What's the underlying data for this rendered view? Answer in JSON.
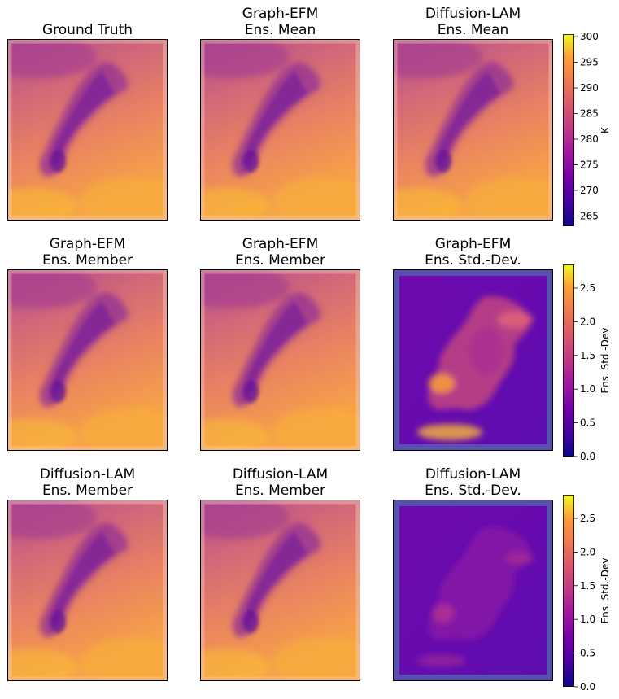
{
  "panels": [
    {
      "title": [
        "Ground Truth"
      ],
      "kind": "temp"
    },
    {
      "title": [
        "Graph-EFM",
        "Ens. Mean"
      ],
      "kind": "temp"
    },
    {
      "title": [
        "Diffusion-LAM",
        "Ens. Mean"
      ],
      "kind": "temp"
    },
    {
      "title": [
        "Graph-EFM",
        "Ens. Member"
      ],
      "kind": "temp"
    },
    {
      "title": [
        "Graph-EFM",
        "Ens. Member"
      ],
      "kind": "temp"
    },
    {
      "title": [
        "Graph-EFM",
        "Ens. Std.-Dev."
      ],
      "kind": "std"
    },
    {
      "title": [
        "Diffusion-LAM",
        "Ens. Member"
      ],
      "kind": "temp"
    },
    {
      "title": [
        "Diffusion-LAM",
        "Ens. Member"
      ],
      "kind": "temp"
    },
    {
      "title": [
        "Diffusion-LAM",
        "Ens. Std.-Dev."
      ],
      "kind": "std"
    }
  ],
  "colorbars": [
    {
      "label": "K",
      "range": [
        263,
        300.5
      ],
      "ticks": [
        "265",
        "270",
        "275",
        "280",
        "285",
        "290",
        "295",
        "300"
      ],
      "tick_values": [
        265,
        270,
        275,
        280,
        285,
        290,
        295,
        300
      ]
    },
    {
      "label": "Ens. Std.-Dev",
      "range": [
        0,
        2.85
      ],
      "ticks": [
        "0.0",
        "0.5",
        "1.0",
        "1.5",
        "2.0",
        "2.5"
      ],
      "tick_values": [
        0,
        0.5,
        1.0,
        1.5,
        2.0,
        2.5
      ]
    },
    {
      "label": "Ens. Std.-Dev",
      "range": [
        0,
        2.85
      ],
      "ticks": [
        "0.0",
        "0.5",
        "1.0",
        "1.5",
        "2.0",
        "2.5"
      ],
      "tick_values": [
        0,
        0.5,
        1.0,
        1.5,
        2.0,
        2.5
      ]
    }
  ],
  "chart_data": {
    "type": "heatmap",
    "colormap": "plasma",
    "grid": false,
    "fields": [
      "Ground Truth",
      "Graph-EFM Ens. Mean",
      "Diffusion-LAM Ens. Mean",
      "Graph-EFM Ens. Member",
      "Graph-EFM Ens. Member",
      "Graph-EFM Ens. Std.-Dev.",
      "Diffusion-LAM Ens. Member",
      "Diffusion-LAM Ens. Member",
      "Diffusion-LAM Ens. Std.-Dev."
    ],
    "temperature_range_K": [
      263,
      300.5
    ],
    "std_range": [
      0,
      2.85
    ]
  }
}
